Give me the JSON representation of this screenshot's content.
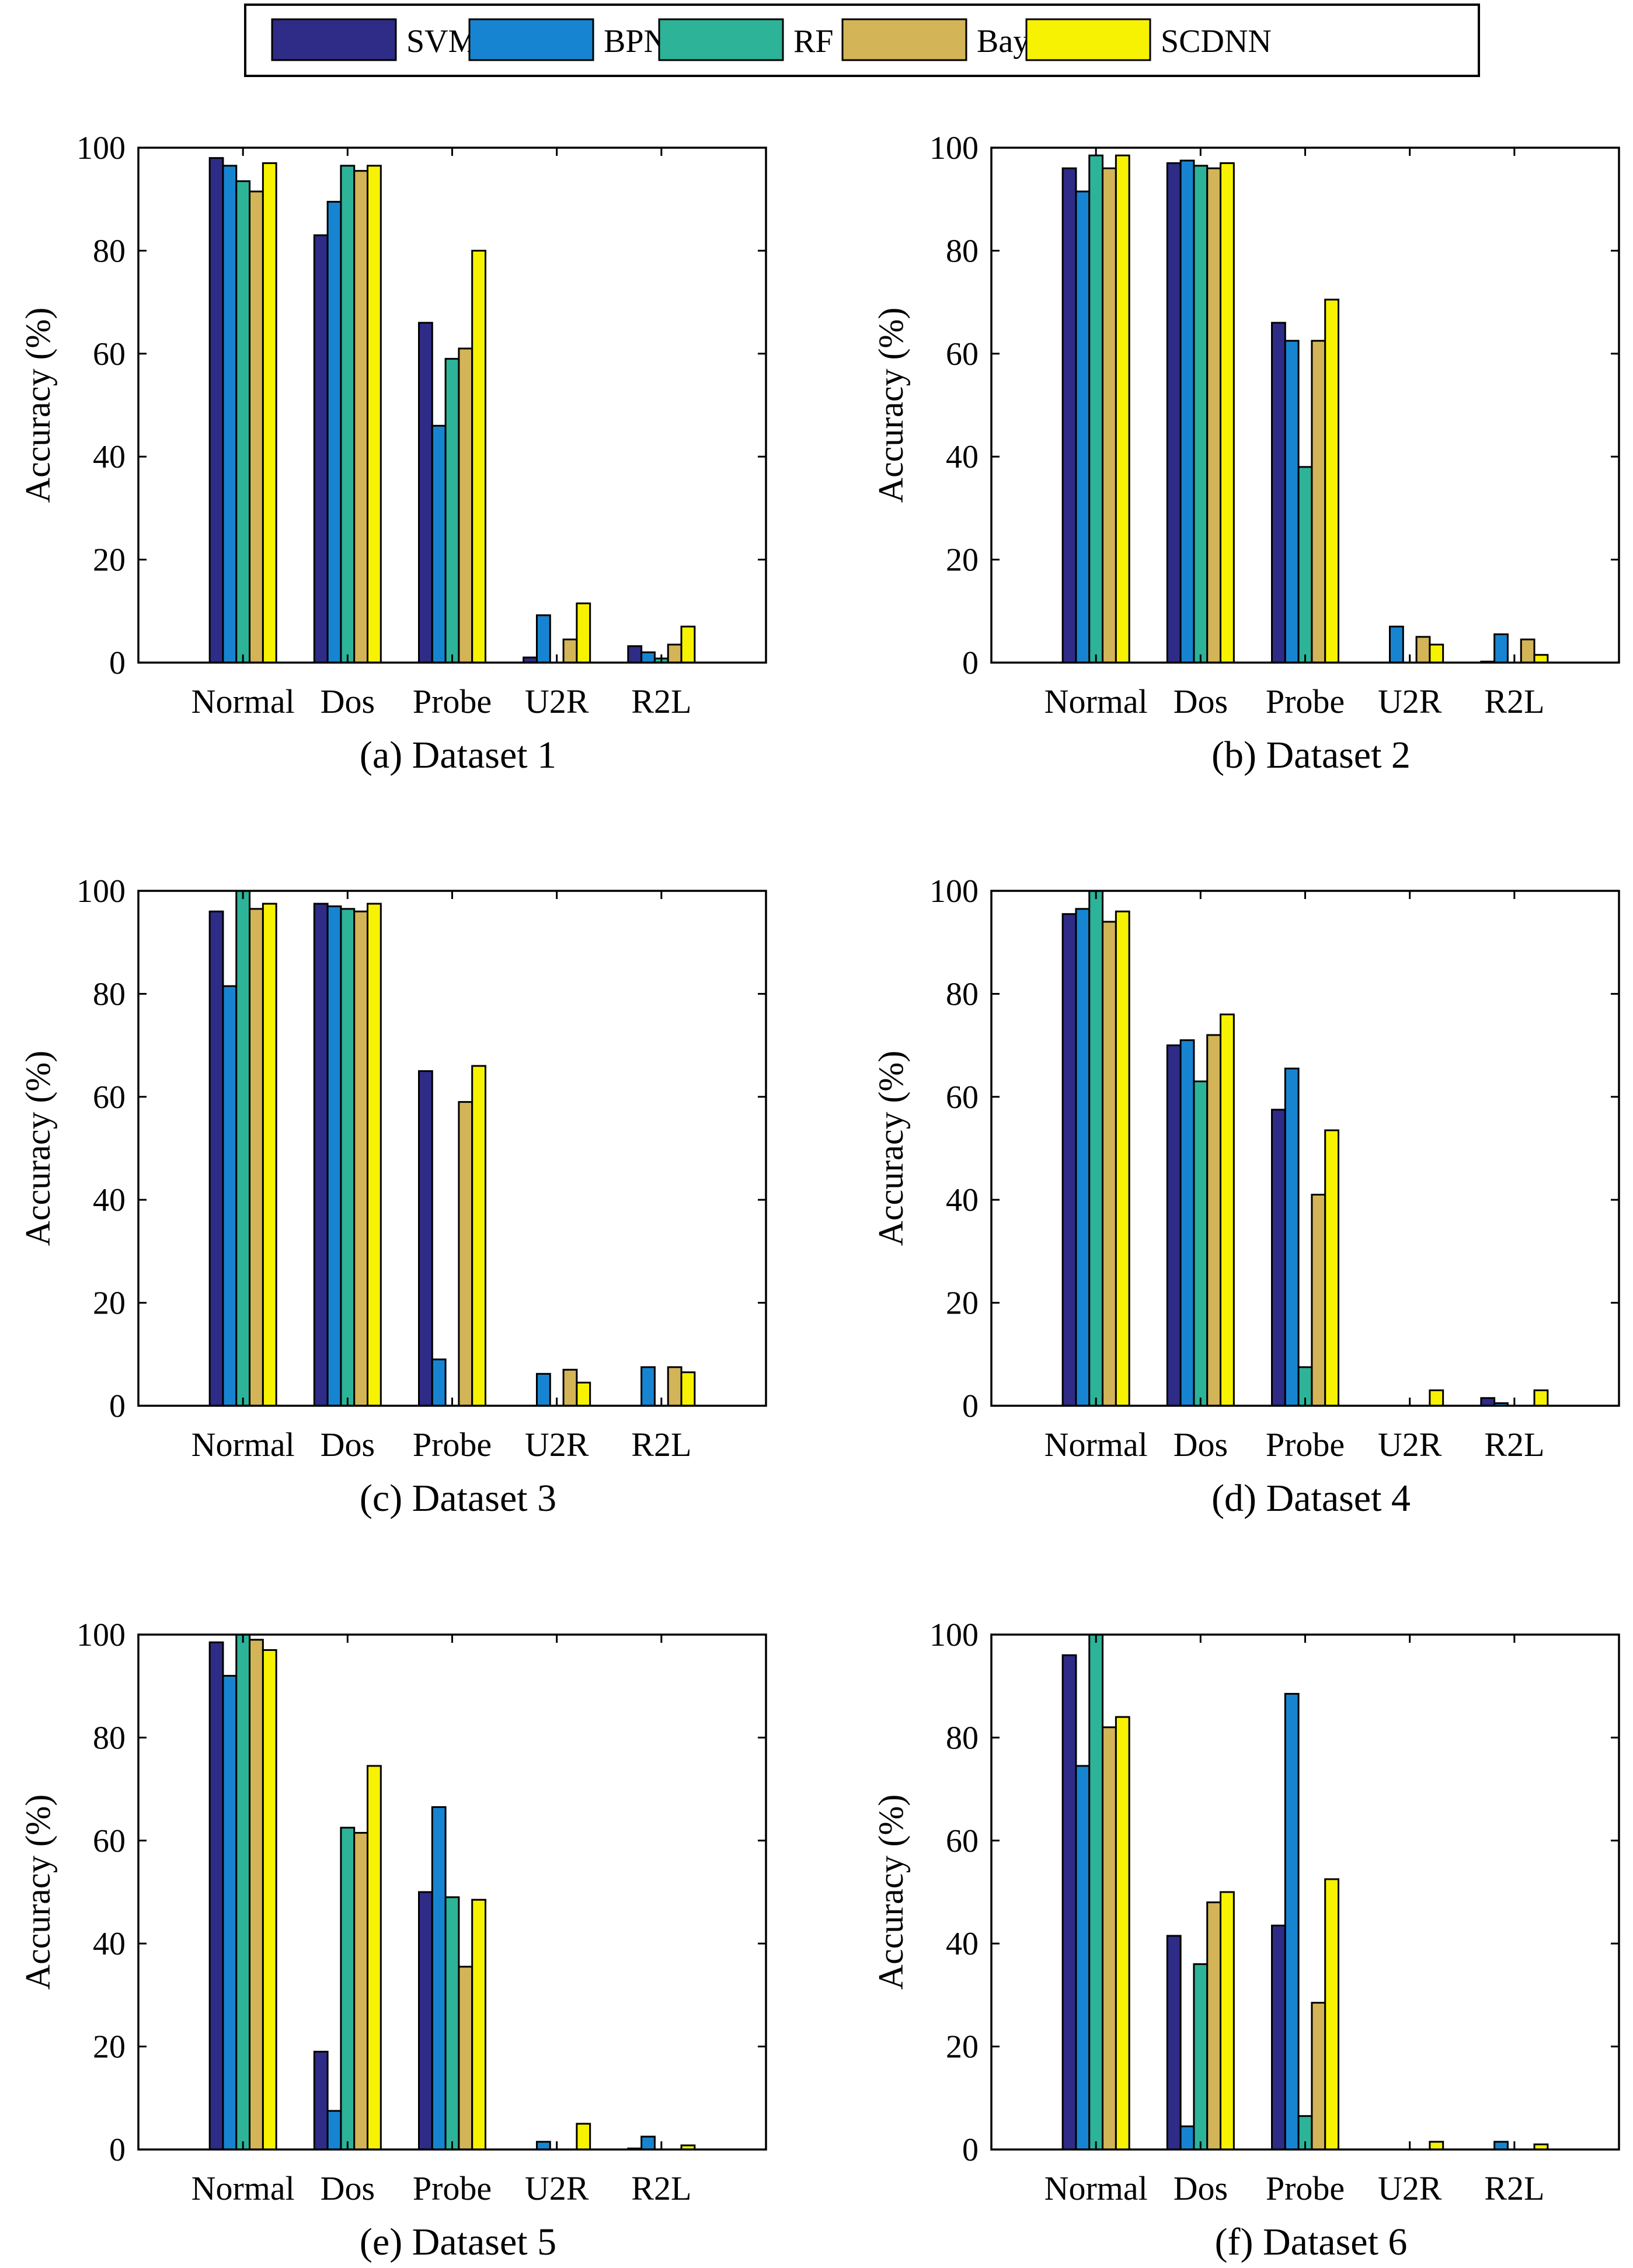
{
  "legend": {
    "entries": [
      {
        "name": "SVM",
        "color": "#2e2c86"
      },
      {
        "name": "BPNN",
        "color": "#1784d1"
      },
      {
        "name": "RF",
        "color": "#2db398"
      },
      {
        "name": "Bayes",
        "color": "#d3b457"
      },
      {
        "name": "SCDNN",
        "color": "#f7f201"
      }
    ]
  },
  "chart_data": [
    {
      "type": "bar",
      "caption": "(a) Dataset 1",
      "ylabel": "Accuracy (%)",
      "ylim": [
        0,
        100
      ],
      "yticks": [
        0,
        20,
        40,
        60,
        80,
        100
      ],
      "categories": [
        "Normal",
        "Dos",
        "Probe",
        "U2R",
        "R2L"
      ],
      "series": [
        {
          "name": "SVM",
          "values": [
            98,
            83,
            66,
            1,
            3.2
          ]
        },
        {
          "name": "BPNN",
          "values": [
            96.5,
            89.5,
            46,
            9.2,
            2
          ]
        },
        {
          "name": "RF",
          "values": [
            93.5,
            96.5,
            59,
            0,
            0.8
          ]
        },
        {
          "name": "Bayes",
          "values": [
            91.5,
            95.5,
            61,
            4.5,
            3.5
          ]
        },
        {
          "name": "SCDNN",
          "values": [
            97,
            96.5,
            80,
            11.5,
            7
          ]
        }
      ]
    },
    {
      "type": "bar",
      "caption": "(b) Dataset 2",
      "ylabel": "Accuracy (%)",
      "ylim": [
        0,
        100
      ],
      "yticks": [
        0,
        20,
        40,
        60,
        80,
        100
      ],
      "categories": [
        "Normal",
        "Dos",
        "Probe",
        "U2R",
        "R2L"
      ],
      "series": [
        {
          "name": "SVM",
          "values": [
            96,
            97,
            66,
            0,
            0.2
          ]
        },
        {
          "name": "BPNN",
          "values": [
            91.5,
            97.5,
            62.5,
            7,
            5.5
          ]
        },
        {
          "name": "RF",
          "values": [
            98.5,
            96.5,
            38,
            0,
            0
          ]
        },
        {
          "name": "Bayes",
          "values": [
            96,
            96,
            62.5,
            5,
            4.5
          ]
        },
        {
          "name": "SCDNN",
          "values": [
            98.5,
            97,
            70.5,
            3.5,
            1.5
          ]
        }
      ]
    },
    {
      "type": "bar",
      "caption": "(c) Dataset 3",
      "ylabel": "Accuracy (%)",
      "ylim": [
        0,
        100
      ],
      "yticks": [
        0,
        20,
        40,
        60,
        80,
        100
      ],
      "categories": [
        "Normal",
        "Dos",
        "Probe",
        "U2R",
        "R2L"
      ],
      "series": [
        {
          "name": "SVM",
          "values": [
            96,
            97.5,
            65,
            0,
            0
          ]
        },
        {
          "name": "BPNN",
          "values": [
            81.5,
            97,
            9,
            6.2,
            7.5
          ]
        },
        {
          "name": "RF",
          "values": [
            100,
            96.5,
            0,
            0,
            0
          ]
        },
        {
          "name": "Bayes",
          "values": [
            96.5,
            96,
            59,
            7,
            7.5
          ]
        },
        {
          "name": "SCDNN",
          "values": [
            97.5,
            97.5,
            66,
            4.5,
            6.5
          ]
        }
      ]
    },
    {
      "type": "bar",
      "caption": "(d) Dataset 4",
      "ylabel": "Accuracy (%)",
      "ylim": [
        0,
        100
      ],
      "yticks": [
        0,
        20,
        40,
        60,
        80,
        100
      ],
      "categories": [
        "Normal",
        "Dos",
        "Probe",
        "U2R",
        "R2L"
      ],
      "series": [
        {
          "name": "SVM",
          "values": [
            95.5,
            70,
            57.5,
            0,
            1.5
          ]
        },
        {
          "name": "BPNN",
          "values": [
            96.5,
            71,
            65.5,
            0,
            0.5
          ]
        },
        {
          "name": "RF",
          "values": [
            100,
            63,
            7.5,
            0,
            0
          ]
        },
        {
          "name": "Bayes",
          "values": [
            94,
            72,
            41,
            0,
            0
          ]
        },
        {
          "name": "SCDNN",
          "values": [
            96,
            76,
            53.5,
            3,
            3
          ]
        }
      ]
    },
    {
      "type": "bar",
      "caption": "(e) Dataset 5",
      "ylabel": "Accuracy (%)",
      "ylim": [
        0,
        100
      ],
      "yticks": [
        0,
        20,
        40,
        60,
        80,
        100
      ],
      "categories": [
        "Normal",
        "Dos",
        "Probe",
        "U2R",
        "R2L"
      ],
      "series": [
        {
          "name": "SVM",
          "values": [
            98.5,
            19,
            50,
            0,
            0.2
          ]
        },
        {
          "name": "BPNN",
          "values": [
            92,
            7.5,
            66.5,
            1.5,
            2.5
          ]
        },
        {
          "name": "RF",
          "values": [
            100,
            62.5,
            49,
            0,
            0
          ]
        },
        {
          "name": "Bayes",
          "values": [
            99,
            61.5,
            35.5,
            0,
            0
          ]
        },
        {
          "name": "SCDNN",
          "values": [
            97,
            74.5,
            48.5,
            5,
            0.8
          ]
        }
      ]
    },
    {
      "type": "bar",
      "caption": "(f) Dataset 6",
      "ylabel": "Accuracy (%)",
      "ylim": [
        0,
        100
      ],
      "yticks": [
        0,
        20,
        40,
        60,
        80,
        100
      ],
      "categories": [
        "Normal",
        "Dos",
        "Probe",
        "U2R",
        "R2L"
      ],
      "series": [
        {
          "name": "SVM",
          "values": [
            96,
            41.5,
            43.5,
            0,
            0
          ]
        },
        {
          "name": "BPNN",
          "values": [
            74.5,
            4.5,
            88.5,
            0,
            1.5
          ]
        },
        {
          "name": "RF",
          "values": [
            100,
            36,
            6.5,
            0,
            0
          ]
        },
        {
          "name": "Bayes",
          "values": [
            82,
            48,
            28.5,
            0,
            0
          ]
        },
        {
          "name": "SCDNN",
          "values": [
            84,
            50,
            52.5,
            1.5,
            1
          ]
        }
      ]
    }
  ]
}
